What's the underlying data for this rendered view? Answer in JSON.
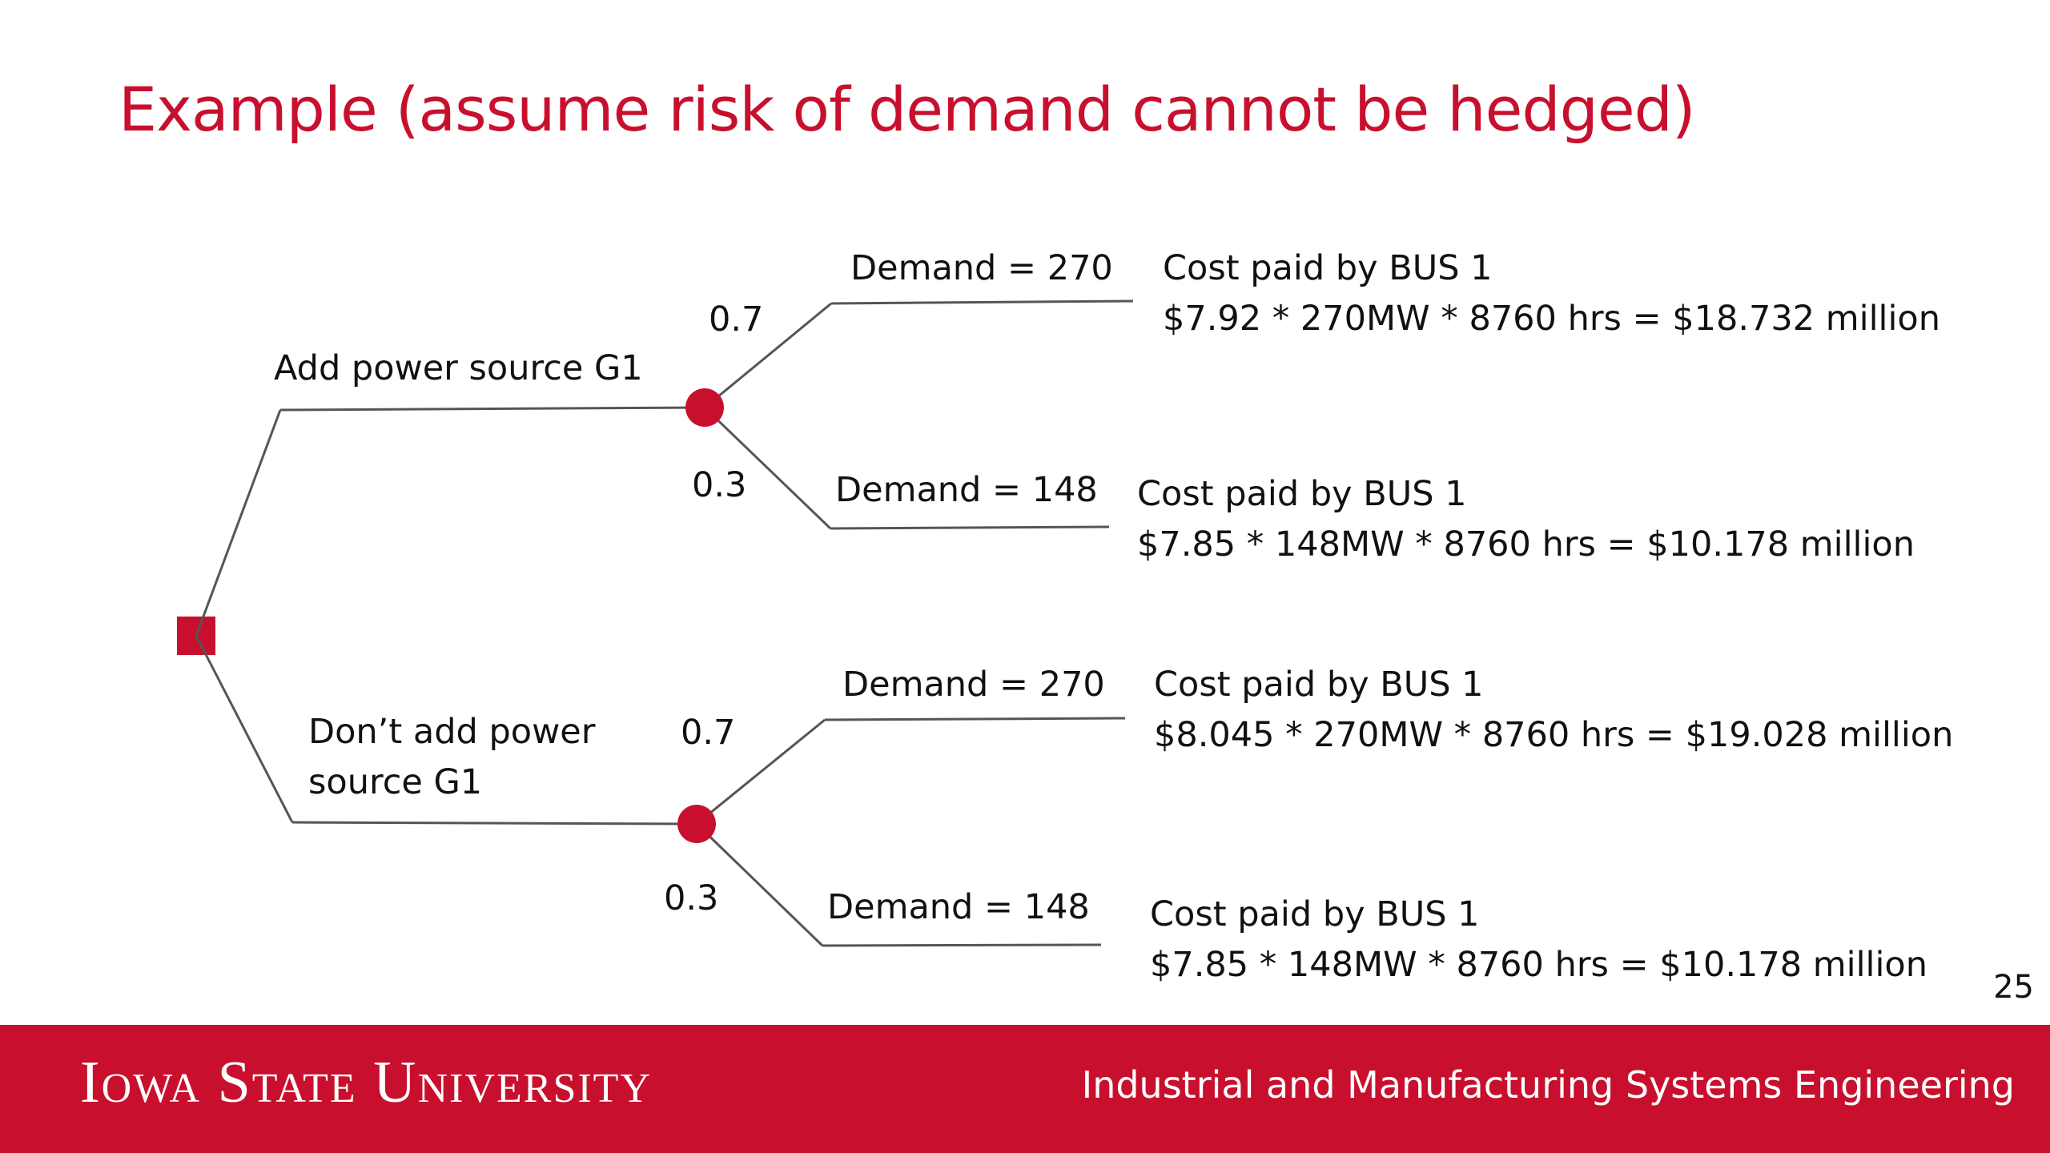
{
  "title": "Example (assume risk of demand cannot be hedged)",
  "page_number": "25",
  "footer": {
    "university": "Iowa State University",
    "department": "Industrial and Manufacturing Systems Engineering"
  },
  "colors": {
    "accent": "#c8102e",
    "line": "#555555"
  },
  "tree": {
    "decision_node": "decision-square",
    "branches": [
      {
        "label": "Add power source G1",
        "outcomes": [
          {
            "prob": "0.7",
            "demand": "Demand = 270",
            "cost_title": "Cost paid by BUS 1",
            "cost_formula": "$7.92 * 270MW * 8760 hrs = $18.732 million"
          },
          {
            "prob": "0.3",
            "demand": "Demand = 148",
            "cost_title": "Cost paid by BUS 1",
            "cost_formula": "$7.85 * 148MW * 8760 hrs = $10.178 million"
          }
        ]
      },
      {
        "label_line1": "Don’t add power",
        "label_line2": "source G1",
        "outcomes": [
          {
            "prob": "0.7",
            "demand": "Demand = 270",
            "cost_title": "Cost paid by BUS 1",
            "cost_formula": "$8.045 * 270MW * 8760 hrs = $19.028 million"
          },
          {
            "prob": "0.3",
            "demand": "Demand = 148",
            "cost_title": "Cost paid by BUS 1",
            "cost_formula": "$7.85 * 148MW * 8760 hrs = $10.178 million"
          }
        ]
      }
    ]
  }
}
